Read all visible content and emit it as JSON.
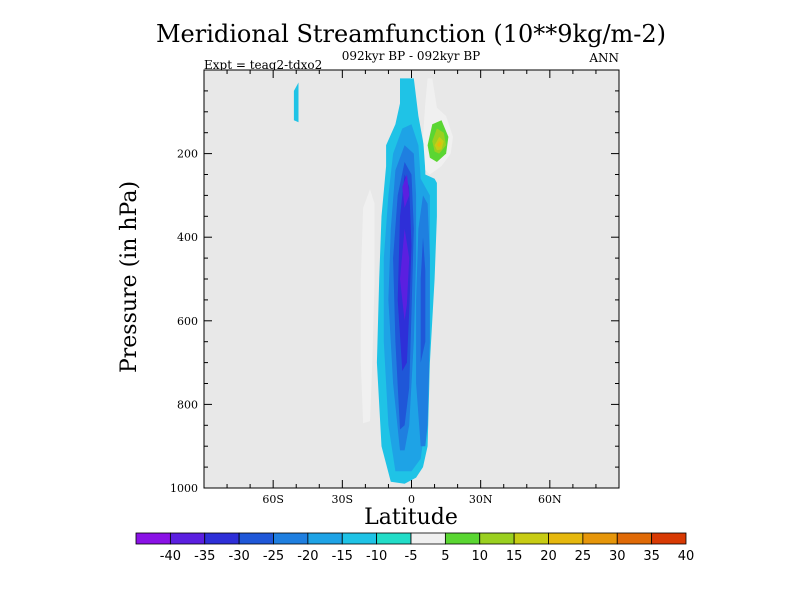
{
  "chart_data": {
    "type": "heatmap",
    "subtype": "filled-contour",
    "title": "Meridional Streamfunction (10**9kg/m-2)",
    "subtitle_center": "092kyr BP - 092kyr BP",
    "subtitle_left": "Expt = teaq2-tdxo2",
    "subtitle_right": "ANN",
    "xlabel": "Latitude",
    "ylabel": "Pressure (in hPa)",
    "xlim": [
      -90,
      90
    ],
    "ylim": [
      1000,
      0
    ],
    "xticks": [
      {
        "value": -60,
        "label": "60S"
      },
      {
        "value": -30,
        "label": "30S"
      },
      {
        "value": 0,
        "label": "0"
      },
      {
        "value": 30,
        "label": "30N"
      },
      {
        "value": 60,
        "label": "60N"
      }
    ],
    "yticks": [
      {
        "value": 200,
        "label": "200"
      },
      {
        "value": 400,
        "label": "400"
      },
      {
        "value": 600,
        "label": "600"
      },
      {
        "value": 800,
        "label": "800"
      },
      {
        "value": 1000,
        "label": "1000"
      }
    ],
    "colorbar": {
      "labels": [
        "-40",
        "-35",
        "-30",
        "-25",
        "-20",
        "-15",
        "-10",
        "-5",
        "5",
        "10",
        "15",
        "20",
        "25",
        "30",
        "35",
        "40"
      ],
      "levels": [
        -40,
        -35,
        -30,
        -25,
        -20,
        -15,
        -10,
        -5,
        5,
        10,
        15,
        20,
        25,
        30,
        35,
        40
      ],
      "colors": [
        "#8a12e6",
        "#5b1fe0",
        "#2e2fd8",
        "#1f57d8",
        "#1f7fe0",
        "#1ea3e6",
        "#1fc3e6",
        "#22ddc8",
        "#f0f0f0",
        "#5ad632",
        "#9ad020",
        "#c8cc14",
        "#e6b80e",
        "#e6960a",
        "#e06a06",
        "#d83a04"
      ],
      "background": "#e8e8e8"
    },
    "contour_regions": [
      {
        "level": -10,
        "description": "main tropical negative cell",
        "polygon": [
          [
            -9,
            985
          ],
          [
            -13,
            900
          ],
          [
            -15,
            700
          ],
          [
            -14,
            500
          ],
          [
            -13,
            350
          ],
          [
            -11,
            230
          ],
          [
            -11,
            180
          ],
          [
            -7,
            130
          ],
          [
            -5,
            80
          ],
          [
            -5,
            20
          ],
          [
            1,
            20
          ],
          [
            3,
            110
          ],
          [
            6,
            200
          ],
          [
            6,
            250
          ],
          [
            10,
            260
          ],
          [
            11,
            270
          ],
          [
            11,
            350
          ],
          [
            10,
            500
          ],
          [
            8,
            700
          ],
          [
            7,
            900
          ],
          [
            5,
            950
          ],
          [
            2,
            975
          ],
          [
            -3,
            990
          ]
        ]
      },
      {
        "level": -15,
        "polygon": [
          [
            -7,
            960
          ],
          [
            -10,
            850
          ],
          [
            -12,
            650
          ],
          [
            -12,
            450
          ],
          [
            -10,
            300
          ],
          [
            -8,
            200
          ],
          [
            -4,
            140
          ],
          [
            0,
            130
          ],
          [
            3,
            180
          ],
          [
            4,
            260
          ],
          [
            8,
            300
          ],
          [
            8,
            450
          ],
          [
            7,
            650
          ],
          [
            6,
            850
          ],
          [
            4,
            930
          ],
          [
            0,
            960
          ]
        ]
      },
      {
        "level": -20,
        "polygon": [
          [
            -5,
            910
          ],
          [
            -8,
            750
          ],
          [
            -10,
            550
          ],
          [
            -9,
            380
          ],
          [
            -7,
            240
          ],
          [
            -3,
            180
          ],
          [
            1,
            200
          ],
          [
            2,
            300
          ],
          [
            2,
            450
          ],
          [
            1,
            650
          ],
          [
            -1,
            850
          ],
          [
            -3,
            910
          ]
        ]
      },
      {
        "level": -25,
        "polygon": [
          [
            -5,
            860
          ],
          [
            -7,
            650
          ],
          [
            -8,
            450
          ],
          [
            -6,
            300
          ],
          [
            -3,
            220
          ],
          [
            0,
            250
          ],
          [
            1,
            380
          ],
          [
            0,
            580
          ],
          [
            -1,
            760
          ],
          [
            -3,
            850
          ]
        ]
      },
      {
        "level": -30,
        "polygon": [
          [
            -4,
            720
          ],
          [
            -6,
            550
          ],
          [
            -5,
            350
          ],
          [
            -3,
            250
          ],
          [
            -1,
            280
          ],
          [
            0,
            420
          ],
          [
            -1,
            580
          ],
          [
            -2,
            700
          ]
        ]
      },
      {
        "level": -35,
        "polygon": [
          [
            -3,
            600
          ],
          [
            -5,
            500
          ],
          [
            -3,
            380
          ],
          [
            -1,
            450
          ],
          [
            -2,
            560
          ]
        ],
        "description": "minimum cell core"
      },
      {
        "level": -35,
        "polygon": [
          [
            -3,
            330
          ],
          [
            -4,
            280
          ],
          [
            -2,
            250
          ],
          [
            -1,
            300
          ]
        ]
      },
      {
        "level": -20,
        "description": "secondary NH negative lobe",
        "polygon": [
          [
            4,
            900
          ],
          [
            2,
            750
          ],
          [
            2,
            550
          ],
          [
            3,
            380
          ],
          [
            5,
            300
          ],
          [
            7,
            320
          ],
          [
            8,
            450
          ],
          [
            8,
            650
          ],
          [
            7,
            850
          ],
          [
            6,
            900
          ]
        ]
      },
      {
        "level": -25,
        "polygon": [
          [
            4,
            700
          ],
          [
            4,
            500
          ],
          [
            5,
            400
          ],
          [
            6,
            480
          ],
          [
            6,
            650
          ]
        ]
      },
      {
        "level": 5,
        "description": "upper NH positive cell",
        "polygon": [
          [
            6,
            240
          ],
          [
            5,
            160
          ],
          [
            6,
            80
          ],
          [
            7,
            20
          ],
          [
            9,
            20
          ],
          [
            11,
            90
          ],
          [
            15,
            110
          ],
          [
            18,
            160
          ],
          [
            17,
            200
          ],
          [
            13,
            230
          ],
          [
            8,
            250
          ]
        ]
      },
      {
        "level": 10,
        "polygon": [
          [
            7,
            180
          ],
          [
            9,
            130
          ],
          [
            13,
            120
          ],
          [
            16,
            160
          ],
          [
            15,
            200
          ],
          [
            11,
            220
          ],
          [
            8,
            210
          ]
        ]
      },
      {
        "level": 15,
        "polygon": [
          [
            9,
            170
          ],
          [
            11,
            140
          ],
          [
            14,
            150
          ],
          [
            15,
            180
          ],
          [
            12,
            200
          ],
          [
            10,
            195
          ]
        ]
      },
      {
        "level": 20,
        "polygon": [
          [
            10,
            180
          ],
          [
            12,
            160
          ],
          [
            14,
            170
          ],
          [
            13,
            190
          ],
          [
            11,
            192
          ]
        ]
      },
      {
        "level": 25,
        "polygon": [
          [
            11,
            180
          ],
          [
            12,
            170
          ],
          [
            13,
            175
          ],
          [
            12,
            185
          ]
        ]
      },
      {
        "level": 5,
        "description": "SH positive band",
        "polygon": [
          [
            -21,
            845
          ],
          [
            -22,
            700
          ],
          [
            -22,
            500
          ],
          [
            -21,
            330
          ],
          [
            -18,
            285
          ],
          [
            -16,
            320
          ],
          [
            -16,
            500
          ],
          [
            -17,
            700
          ],
          [
            -18,
            840
          ]
        ]
      },
      {
        "level": -10,
        "description": "small upper SH feature",
        "polygon": [
          [
            -51,
            120
          ],
          [
            -51,
            50
          ],
          [
            -49,
            30
          ],
          [
            -49,
            125
          ]
        ]
      }
    ]
  }
}
